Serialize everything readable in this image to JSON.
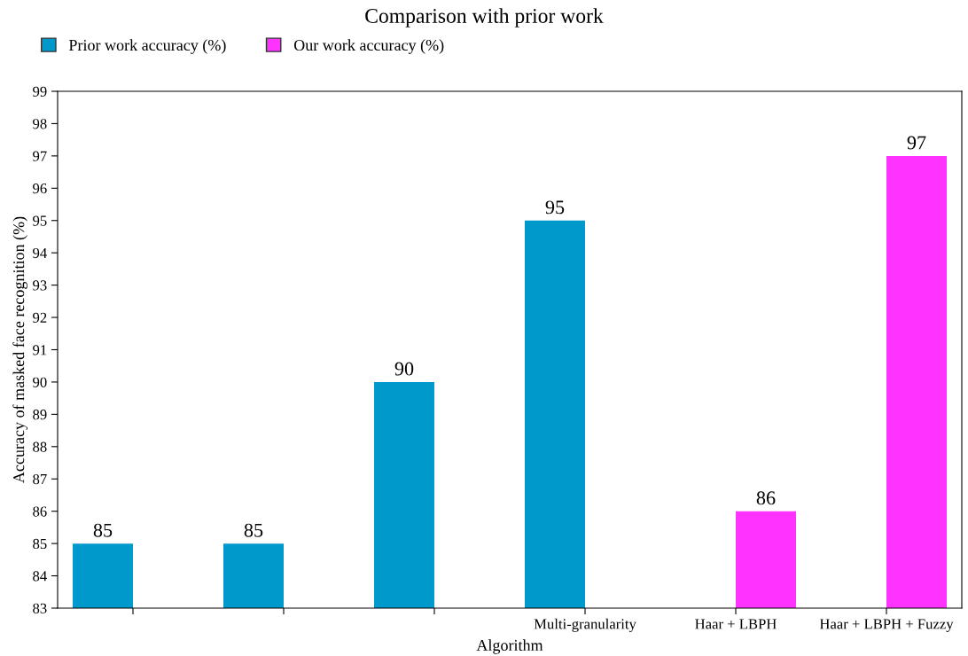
{
  "chart_data": {
    "type": "bar",
    "title": "Comparison with prior work",
    "xlabel": "Algorithm",
    "ylabel": "Accuracy of masked face recognition (%)",
    "categories": [
      null,
      null,
      null,
      "Multi-granularity",
      "Haar + LBPH",
      "Haar + LBPH + Fuzzy"
    ],
    "series": [
      {
        "name": "Prior work accuracy (%)",
        "color": "#0099cc",
        "values": [
          85,
          85,
          90,
          95,
          null,
          null
        ]
      },
      {
        "name": "Our work accuracy (%)",
        "color": "#ff33ff",
        "values": [
          null,
          null,
          null,
          null,
          86,
          97
        ]
      }
    ],
    "ylim": [
      83,
      99
    ],
    "yticks": [
      83,
      84,
      85,
      86,
      87,
      88,
      89,
      90,
      91,
      92,
      93,
      94,
      95,
      96,
      97,
      98,
      99
    ],
    "grid": false,
    "legend": "top left",
    "data_labels": true
  }
}
